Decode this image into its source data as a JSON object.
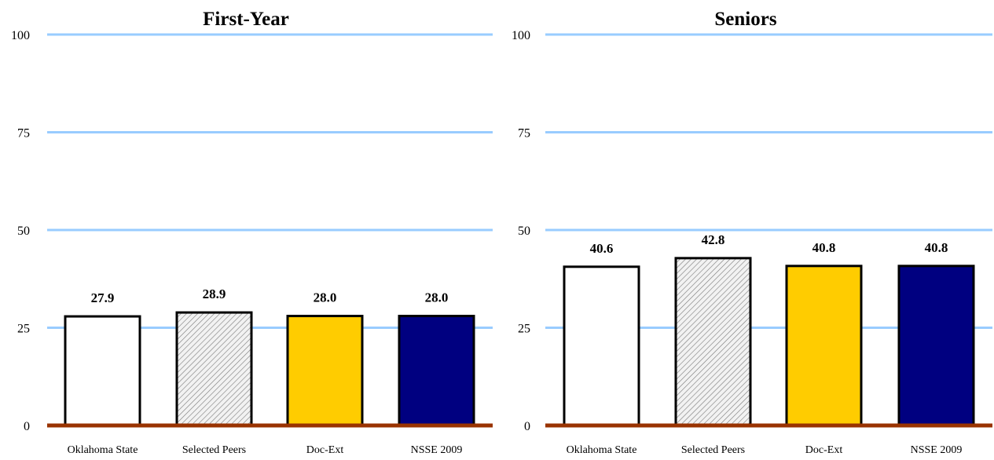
{
  "chart_data": [
    {
      "type": "bar",
      "title": "First-Year",
      "xlabel": "",
      "ylabel": "",
      "ylim": [
        0,
        100
      ],
      "yticks": [
        "0",
        "25",
        "50",
        "75",
        "100"
      ],
      "grid": true,
      "categories": [
        "Oklahoma State",
        "Selected Peers",
        "Doc-Ext",
        "NSSE 2009"
      ],
      "values": [
        27.9,
        28.9,
        28.0,
        28.0
      ],
      "value_labels": [
        "27.9",
        "28.9",
        "28.0",
        "28.0"
      ]
    },
    {
      "type": "bar",
      "title": "Seniors",
      "xlabel": "",
      "ylabel": "",
      "ylim": [
        0,
        100
      ],
      "yticks": [
        "0",
        "25",
        "50",
        "75",
        "100"
      ],
      "grid": true,
      "categories": [
        "Oklahoma State",
        "Selected Peers",
        "Doc-Ext",
        "NSSE 2009"
      ],
      "values": [
        40.6,
        42.8,
        40.8,
        40.8
      ],
      "value_labels": [
        "40.6",
        "42.8",
        "40.8",
        "40.8"
      ]
    }
  ],
  "colors": {
    "gridline": "#99ccff",
    "baseline": "#993300",
    "bar_outline": "#000000",
    "bar_fills": [
      "#ffffff",
      "hatch-gray",
      "#ffcc00",
      "#000080"
    ]
  }
}
